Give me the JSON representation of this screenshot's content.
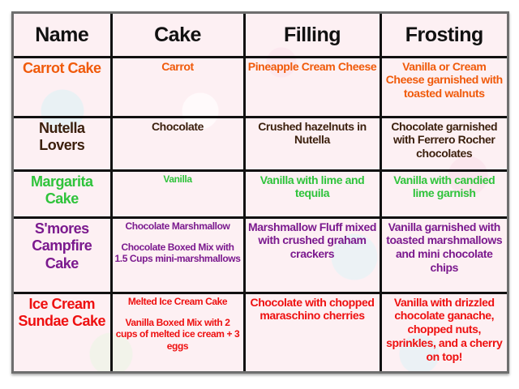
{
  "headers": [
    "Name",
    "Cake",
    "Filling",
    "Frosting"
  ],
  "colors": {
    "carrot": "#f05a0a",
    "nutella": "#3b1f0c",
    "margarita": "#2fc33b",
    "smores": "#7b1a8e",
    "sundae": "#ee1010",
    "header": "#111111"
  },
  "rows": [
    {
      "name": "Carrot Cake",
      "cake": "Carrot",
      "cake2": "",
      "filling": "Pineapple Cream Cheese",
      "frosting": "Vanilla or Cream Cheese garnished with toasted walnuts"
    },
    {
      "name": "Nutella Lovers",
      "cake": "Chocolate",
      "cake2": "",
      "filling": "Crushed hazelnuts in Nutella",
      "frosting": "Chocolate garnished with Ferrero Rocher chocolates"
    },
    {
      "name": "Margarita Cake",
      "cake": "Vanilla",
      "cake2": "",
      "filling": "Vanilla with lime and tequila",
      "frosting": "Vanilla with candied lime garnish"
    },
    {
      "name": "S'mores Campfire Cake",
      "cake": "Chocolate Marshmallow",
      "cake2": "Chocolate Boxed Mix with 1.5 Cups mini-marshmallows",
      "filling": "Marshmallow Fluff mixed with crushed graham crackers",
      "frosting": "Vanilla garnished with toasted marshmallows and mini chocolate chips"
    },
    {
      "name": "Ice Cream Sundae Cake",
      "cake": "Melted Ice Cream Cake",
      "cake2": "Vanilla Boxed Mix with 2 cups of melted ice cream + 3 eggs",
      "filling": "Chocolate with chopped maraschino cherries",
      "frosting": "Vanilla with drizzled chocolate ganache, chopped nuts, sprinkles, and a cherry on top!"
    }
  ]
}
